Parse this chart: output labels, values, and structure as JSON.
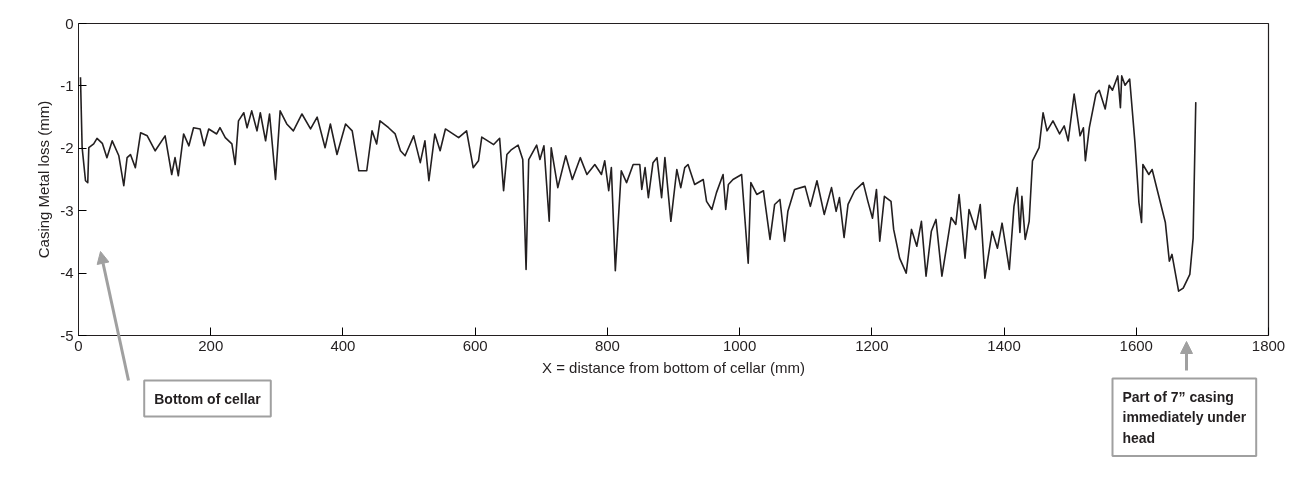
{
  "chart_data": {
    "type": "line",
    "xlabel": "X = distance from bottom of cellar (mm)",
    "ylabel": "Casing Metal loss (mm)",
    "xlim": [
      0,
      1800
    ],
    "ylim": [
      -5,
      0
    ],
    "xticks": [
      0,
      200,
      400,
      600,
      800,
      1000,
      1200,
      1400,
      1600,
      1800
    ],
    "yticks": [
      -5,
      -4,
      -3,
      -2,
      -1,
      0
    ],
    "grid": false,
    "line_style": "solid",
    "annotations": [
      "Bottom of cellar",
      "Part of 7” casing immediately under head"
    ],
    "series": [
      {
        "color": "#231f20",
        "x": [
          3,
          5.5,
          10.6,
          14,
          15.6,
          23,
          28,
          36,
          43,
          51,
          61,
          68.5,
          73.5,
          78.6,
          86,
          94,
          104,
          116,
          131,
          141,
          146,
          151,
          159,
          167,
          174,
          184,
          190,
          197,
          209,
          214,
          222,
          232,
          237,
          242,
          250,
          255,
          262,
          270,
          275,
          283,
          289,
          298,
          305,
          315,
          325,
          338,
          351,
          361,
          373,
          381,
          391,
          404,
          414,
          424,
          436,
          444,
          451,
          456,
          469,
          479,
          487,
          494,
          507,
          517,
          524,
          530,
          539,
          547,
          555,
          575,
          587,
          597,
          605,
          610,
          628,
          637,
          643,
          648,
          655,
          665,
          672,
          677,
          681,
          693,
          698,
          704,
          712,
          715,
          725,
          737,
          747,
          759,
          769,
          781,
          791,
          796,
          802,
          806,
          812,
          821,
          829,
          839,
          849,
          852,
          857,
          862,
          869,
          875,
          882,
          887,
          896,
          905,
          911,
          917,
          922,
          932,
          945,
          950,
          958,
          965,
          975,
          979,
          983,
          990,
          1003,
          1013,
          1017,
          1026,
          1036,
          1046,
          1053,
          1061,
          1068,
          1073,
          1083,
          1099,
          1107,
          1117,
          1128,
          1139,
          1146,
          1151,
          1158,
          1164,
          1174,
          1187,
          1194,
          1201,
          1207,
          1212,
          1219,
          1229,
          1233,
          1242,
          1252,
          1260,
          1268,
          1275,
          1282,
          1290,
          1297,
          1306,
          1320,
          1327,
          1332,
          1341,
          1347,
          1357,
          1364,
          1371,
          1382,
          1390,
          1397,
          1408,
          1415,
          1420,
          1424,
          1427,
          1432,
          1438,
          1443,
          1453,
          1459,
          1465,
          1474,
          1484,
          1491,
          1497,
          1506,
          1515,
          1520,
          1523,
          1529,
          1539,
          1544,
          1553,
          1559,
          1564,
          1572,
          1576,
          1578,
          1583,
          1590,
          1598,
          1604,
          1608,
          1610,
          1619,
          1624,
          1632,
          1644,
          1650,
          1654,
          1664,
          1671,
          1681,
          1686,
          1690
        ],
        "values": [
          -0.86,
          -1.99,
          -2.52,
          -2.55,
          -1.99,
          -1.93,
          -1.84,
          -1.92,
          -2.15,
          -1.88,
          -2.12,
          -2.6,
          -2.15,
          -2.1,
          -2.31,
          -1.75,
          -1.8,
          -2.04,
          -1.8,
          -2.42,
          -2.15,
          -2.44,
          -1.77,
          -1.96,
          -1.67,
          -1.69,
          -1.96,
          -1.69,
          -1.77,
          -1.67,
          -1.83,
          -1.93,
          -2.26,
          -1.56,
          -1.43,
          -1.67,
          -1.4,
          -1.72,
          -1.43,
          -1.88,
          -1.45,
          -2.5,
          -1.4,
          -1.61,
          -1.72,
          -1.45,
          -1.69,
          -1.5,
          -1.99,
          -1.61,
          -2.1,
          -1.61,
          -1.72,
          -2.36,
          -2.36,
          -1.72,
          -1.93,
          -1.56,
          -1.67,
          -1.77,
          -2.04,
          -2.12,
          -1.8,
          -2.23,
          -1.88,
          -2.52,
          -1.77,
          -2.04,
          -1.69,
          -1.83,
          -1.72,
          -2.31,
          -2.2,
          -1.82,
          -1.94,
          -1.84,
          -2.68,
          -2.1,
          -2.02,
          -1.95,
          -2.18,
          -3.94,
          -2.18,
          -1.95,
          -2.18,
          -1.96,
          -3.17,
          -1.99,
          -2.63,
          -2.12,
          -2.5,
          -2.15,
          -2.42,
          -2.26,
          -2.42,
          -2.2,
          -2.68,
          -2.31,
          -3.96,
          -2.36,
          -2.55,
          -2.26,
          -2.26,
          -2.66,
          -2.31,
          -2.79,
          -2.23,
          -2.15,
          -2.79,
          -2.15,
          -3.17,
          -2.34,
          -2.63,
          -2.31,
          -2.26,
          -2.58,
          -2.5,
          -2.85,
          -2.98,
          -2.71,
          -2.42,
          -2.98,
          -2.58,
          -2.5,
          -2.42,
          -3.84,
          -2.55,
          -2.74,
          -2.68,
          -3.46,
          -2.9,
          -2.82,
          -3.49,
          -3.01,
          -2.66,
          -2.61,
          -2.93,
          -2.52,
          -3.06,
          -2.63,
          -3.01,
          -2.79,
          -3.43,
          -2.9,
          -2.68,
          -2.55,
          -2.85,
          -3.12,
          -2.66,
          -3.49,
          -2.77,
          -2.85,
          -3.3,
          -3.76,
          -4.0,
          -3.3,
          -3.57,
          -3.17,
          -4.05,
          -3.33,
          -3.14,
          -4.05,
          -3.11,
          -3.22,
          -2.74,
          -3.76,
          -2.98,
          -3.3,
          -2.9,
          -4.08,
          -3.33,
          -3.6,
          -3.2,
          -3.94,
          -2.93,
          -2.63,
          -3.35,
          -2.77,
          -3.46,
          -3.17,
          -2.2,
          -1.99,
          -1.43,
          -1.72,
          -1.56,
          -1.77,
          -1.64,
          -1.88,
          -1.13,
          -1.8,
          -1.67,
          -2.2,
          -1.67,
          -1.13,
          -1.07,
          -1.37,
          -0.99,
          -1.07,
          -0.84,
          -1.35,
          -0.84,
          -0.99,
          -0.89,
          -1.91,
          -2.87,
          -3.19,
          -2.26,
          -2.42,
          -2.34,
          -2.68,
          -3.19,
          -3.81,
          -3.7,
          -4.29,
          -4.24,
          -4.02,
          -3.44,
          -1.26
        ]
      }
    ]
  }
}
